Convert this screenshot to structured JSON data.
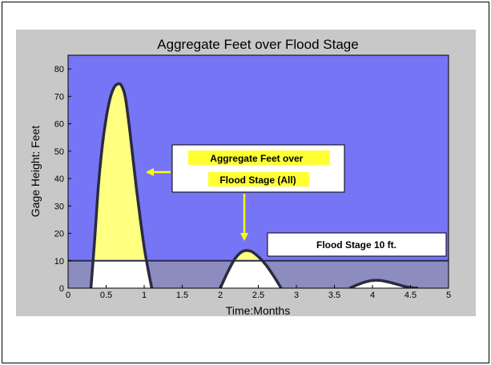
{
  "chart_data": {
    "type": "area",
    "title": "Aggregate Feet over Flood Stage",
    "xlabel": "Time:Months",
    "ylabel": "Gage Height: Feet",
    "xlim": [
      0,
      5
    ],
    "ylim": [
      0,
      85
    ],
    "x_ticks": [
      "0",
      "0.5",
      "1",
      "1.5",
      "2",
      "2.5",
      "3",
      "3.5",
      "4",
      "4.5",
      "5"
    ],
    "y_ticks": [
      "0",
      "10",
      "20",
      "30",
      "40",
      "50",
      "60",
      "70",
      "80"
    ],
    "flood_stage": 10,
    "x": [
      0.3,
      0.35,
      0.4,
      0.45,
      0.5,
      0.55,
      0.6,
      0.65,
      0.7,
      0.75,
      0.8,
      0.85,
      0.9,
      0.95,
      1.0,
      1.05,
      1.1,
      2.0,
      2.1,
      2.2,
      2.3,
      2.4,
      2.5,
      2.6,
      2.7,
      2.8,
      3.7,
      3.8,
      3.9,
      4.0,
      4.1,
      4.2,
      4.3,
      4.4,
      4.5,
      4.6
    ],
    "series": [
      {
        "values": [
          0,
          18,
          38,
          52,
          62,
          69,
          73,
          74.5,
          74,
          70,
          60,
          48,
          36,
          25,
          15,
          7,
          0,
          0,
          6,
          11,
          13.5,
          13.5,
          11.5,
          8.5,
          4.5,
          0,
          0,
          1.2,
          2.2,
          2.8,
          2.8,
          2.3,
          1.6,
          0.8,
          0.2,
          0
        ]
      }
    ],
    "annotations": [
      {
        "text": "Aggregate Feet over Flood Stage (All)",
        "x": 2.6,
        "y": 39.5
      },
      {
        "text": "Flood Stage 10 ft.",
        "x": 3.9,
        "y": 17
      }
    ],
    "colors": {
      "background": "#7575f5",
      "below_flood": "#8c8cbf",
      "above_flood_fill": "#ffff80",
      "below_flood_fill": "#ffffff",
      "curve": "#2a2a40",
      "figure_bg": "#c8c8c8",
      "callout_arrow": "#ffff00",
      "callout_highlight": "#ffff33"
    }
  }
}
